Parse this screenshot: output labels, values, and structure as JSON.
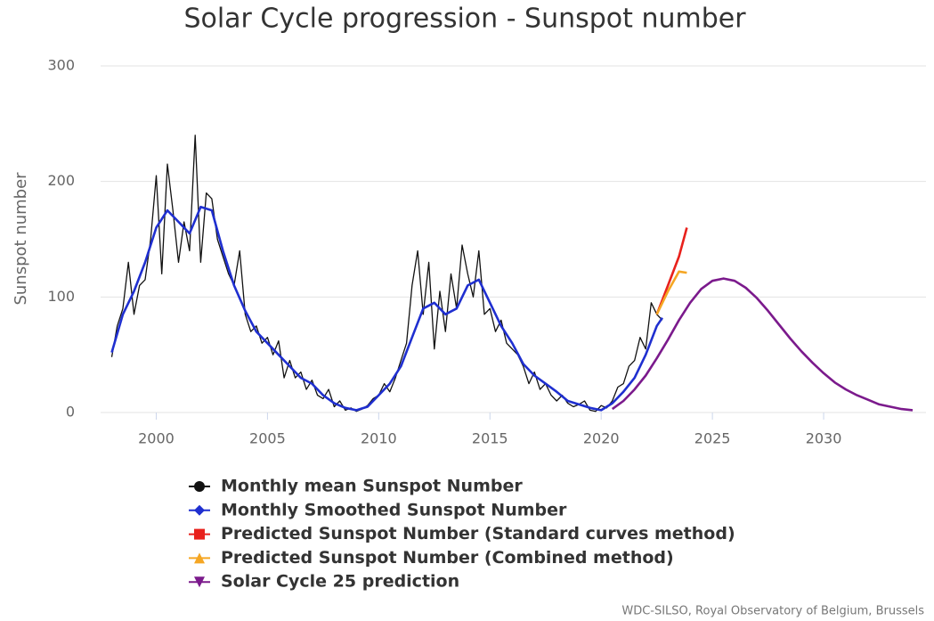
{
  "chart_data": {
    "type": "line",
    "title": "Solar Cycle progression - Sunspot number",
    "y_label": "Sunspot number",
    "credit": "WDC-SILSO, Royal Observatory of Belgium, Brussels",
    "xlim": [
      1997.5,
      2034.6
    ],
    "xticks": [
      2000,
      2005,
      2010,
      2015,
      2020,
      2025,
      2030
    ],
    "ylim": [
      0,
      300
    ],
    "yticks": [
      0,
      100,
      200,
      300
    ],
    "grid": true,
    "legend": "bottom",
    "series": [
      {
        "name": "Monthly mean Sunspot Number",
        "color": "#111111",
        "marker": "circle",
        "width": 1.3,
        "x": [
          1998.0,
          1998.25,
          1998.5,
          1998.75,
          1999.0,
          1999.25,
          1999.5,
          1999.75,
          2000.0,
          2000.25,
          2000.5,
          2000.75,
          2001.0,
          2001.25,
          2001.5,
          2001.75,
          2002.0,
          2002.25,
          2002.5,
          2002.75,
          2003.0,
          2003.25,
          2003.5,
          2003.75,
          2004.0,
          2004.25,
          2004.5,
          2004.75,
          2005.0,
          2005.25,
          2005.5,
          2005.75,
          2006.0,
          2006.25,
          2006.5,
          2006.75,
          2007.0,
          2007.25,
          2007.5,
          2007.75,
          2008.0,
          2008.25,
          2008.5,
          2008.75,
          2009.0,
          2009.25,
          2009.5,
          2009.75,
          2010.0,
          2010.25,
          2010.5,
          2010.75,
          2011.0,
          2011.25,
          2011.5,
          2011.75,
          2012.0,
          2012.25,
          2012.5,
          2012.75,
          2013.0,
          2013.25,
          2013.5,
          2013.75,
          2014.0,
          2014.25,
          2014.5,
          2014.75,
          2015.0,
          2015.25,
          2015.5,
          2015.75,
          2016.0,
          2016.25,
          2016.5,
          2016.75,
          2017.0,
          2017.25,
          2017.5,
          2017.75,
          2018.0,
          2018.25,
          2018.5,
          2018.75,
          2019.0,
          2019.25,
          2019.5,
          2019.75,
          2020.0,
          2020.25,
          2020.5,
          2020.75,
          2021.0,
          2021.25,
          2021.5,
          2021.75,
          2022.0,
          2022.25,
          2022.5,
          2022.75
        ],
        "values": [
          48,
          75,
          90,
          130,
          85,
          110,
          115,
          150,
          205,
          120,
          215,
          175,
          130,
          165,
          140,
          240,
          130,
          190,
          185,
          150,
          135,
          120,
          110,
          140,
          85,
          70,
          75,
          60,
          65,
          50,
          62,
          30,
          45,
          30,
          35,
          20,
          28,
          15,
          12,
          20,
          5,
          10,
          2,
          4,
          1,
          3,
          6,
          12,
          15,
          25,
          18,
          30,
          45,
          60,
          110,
          140,
          85,
          130,
          55,
          105,
          70,
          120,
          90,
          145,
          120,
          100,
          140,
          85,
          90,
          70,
          80,
          60,
          55,
          50,
          40,
          25,
          35,
          20,
          25,
          15,
          10,
          15,
          8,
          5,
          7,
          10,
          2,
          1,
          6,
          4,
          10,
          22,
          25,
          40,
          45,
          65,
          55,
          95,
          85,
          80
        ]
      },
      {
        "name": "Monthly Smoothed Sunspot Number",
        "color": "#1f2fd0",
        "marker": "diamond",
        "width": 2.6,
        "x": [
          1998.0,
          1998.5,
          1999.0,
          1999.5,
          2000.0,
          2000.5,
          2001.0,
          2001.5,
          2002.0,
          2002.5,
          2003.0,
          2003.5,
          2004.0,
          2004.5,
          2005.0,
          2005.5,
          2006.0,
          2006.5,
          2007.0,
          2007.5,
          2008.0,
          2008.5,
          2009.0,
          2009.5,
          2010.0,
          2010.5,
          2011.0,
          2011.5,
          2012.0,
          2012.5,
          2013.0,
          2013.5,
          2014.0,
          2014.5,
          2015.0,
          2015.5,
          2016.0,
          2016.5,
          2017.0,
          2017.5,
          2018.0,
          2018.5,
          2019.0,
          2019.5,
          2020.0,
          2020.5,
          2021.0,
          2021.5,
          2022.0,
          2022.5,
          2022.75
        ],
        "values": [
          52,
          85,
          105,
          130,
          160,
          175,
          165,
          155,
          178,
          175,
          140,
          110,
          88,
          70,
          60,
          50,
          40,
          30,
          25,
          15,
          8,
          4,
          2,
          5,
          15,
          25,
          40,
          65,
          90,
          95,
          85,
          90,
          110,
          115,
          95,
          75,
          60,
          42,
          32,
          25,
          18,
          10,
          7,
          4,
          2,
          8,
          18,
          30,
          50,
          75,
          82
        ]
      },
      {
        "name": "Predicted Sunspot Number (Standard curves method)",
        "color": "#e8211c",
        "marker": "square",
        "width": 2.6,
        "x": [
          2022.5,
          2023.0,
          2023.5,
          2023.85
        ],
        "values": [
          85,
          110,
          135,
          160
        ]
      },
      {
        "name": "Predicted Sunspot Number (Combined method)",
        "color": "#f5a623",
        "marker": "triangle",
        "width": 2.6,
        "x": [
          2022.5,
          2023.0,
          2023.5,
          2023.85
        ],
        "values": [
          85,
          105,
          122,
          121
        ]
      },
      {
        "name": "Solar Cycle 25 prediction",
        "color": "#7b1a8c",
        "marker": "triangle-down",
        "width": 2.6,
        "x": [
          2020.5,
          2021.0,
          2021.5,
          2022.0,
          2022.5,
          2023.0,
          2023.5,
          2024.0,
          2024.5,
          2025.0,
          2025.5,
          2026.0,
          2026.5,
          2027.0,
          2027.5,
          2028.0,
          2028.5,
          2029.0,
          2029.5,
          2030.0,
          2030.5,
          2031.0,
          2031.5,
          2032.0,
          2032.5,
          2033.0,
          2033.5,
          2034.0
        ],
        "values": [
          3,
          10,
          20,
          32,
          47,
          63,
          80,
          95,
          107,
          114,
          116,
          114,
          108,
          99,
          88,
          76,
          64,
          53,
          43,
          34,
          26,
          20,
          15,
          11,
          7,
          5,
          3,
          2
        ]
      }
    ]
  }
}
